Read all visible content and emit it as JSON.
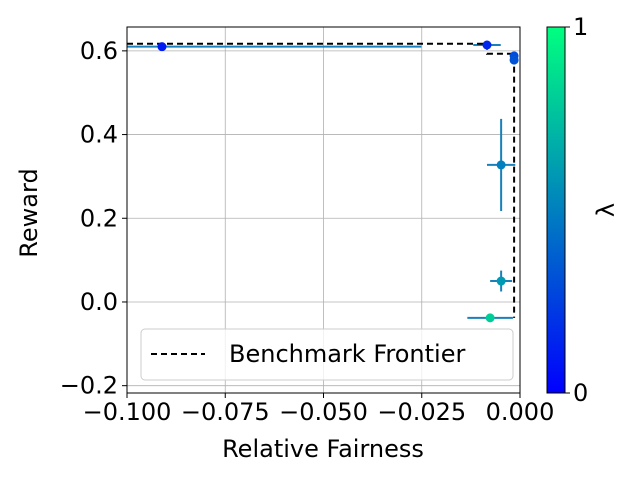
{
  "chart_data": {
    "type": "scatter",
    "xlabel": "Relative Fairness",
    "ylabel": "Reward",
    "x": [
      -0.0911,
      -0.0084,
      -0.0015,
      -0.0015,
      -0.0048,
      -0.0048,
      -0.0076
    ],
    "y": [
      0.61,
      0.614,
      0.588,
      0.578,
      0.3275,
      0.05,
      -0.038
    ],
    "xerr": [
      0.066,
      0.0035,
      0.0006,
      0.0006,
      0.0036,
      0.0028,
      0.0058
    ],
    "yerr": [
      0.006,
      0.01,
      0.008,
      0.008,
      0.11,
      0.025,
      0.004
    ],
    "lambda": [
      0.1,
      0.15,
      0.3,
      0.32,
      0.5,
      0.6,
      0.8
    ],
    "colormap": "winter",
    "errcolor": "#1a80bb",
    "frontier": {
      "name": "Benchmark Frontier",
      "color": "#000000",
      "x": [
        -0.1,
        -0.0084,
        -0.0084,
        -0.0015,
        -0.0015
      ],
      "y": [
        0.617,
        0.617,
        0.593,
        0.593,
        -0.038
      ]
    },
    "xlim": [
      -0.1,
      0.0
    ],
    "ylim": [
      -0.2175,
      0.657
    ],
    "xticks": [
      {
        "value": -0.1,
        "label": "−0.100"
      },
      {
        "value": -0.075,
        "label": "−0.075"
      },
      {
        "value": -0.05,
        "label": "−0.050"
      },
      {
        "value": -0.025,
        "label": "−0.025"
      },
      {
        "value": 0.0,
        "label": "0.000"
      }
    ],
    "yticks": [
      {
        "value": -0.2,
        "label": "−0.2"
      },
      {
        "value": 0.0,
        "label": "0.0"
      },
      0.2,
      0.4,
      0.6
    ],
    "grid": true,
    "legend_loc": "lower left",
    "clabel": "λ",
    "clim": [
      0,
      1
    ],
    "cticks": [
      0,
      1
    ]
  }
}
